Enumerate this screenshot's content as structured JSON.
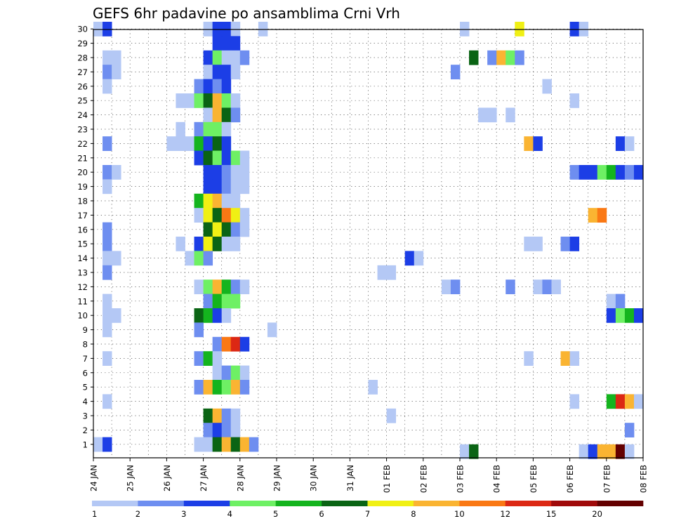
{
  "chart_data": {
    "type": "heatmap",
    "title": "GEFS 6hr padavine po ansamblima Crni Vrh",
    "xlabel": "",
    "ylabel": "",
    "x_tick_labels": [
      "24 JAN",
      "25 JAN",
      "26 JAN",
      "27 JAN",
      "28 JAN",
      "29 JAN",
      "30 JAN",
      "31 JAN",
      "01 FEB",
      "02 FEB",
      "03 FEB",
      "04 FEB",
      "05 FEB",
      "06 FEB",
      "07 FEB",
      "08 FEB"
    ],
    "y_tick_labels": [
      "1",
      "2",
      "3",
      "4",
      "5",
      "6",
      "7",
      "8",
      "9",
      "10",
      "11",
      "12",
      "13",
      "14",
      "15",
      "16",
      "17",
      "18",
      "19",
      "20",
      "21",
      "22",
      "23",
      "24",
      "25",
      "26",
      "27",
      "28",
      "29",
      "30"
    ],
    "time_step": "6hr",
    "time_steps_total": 60,
    "grid": "dotted",
    "colorbar": {
      "labels": [
        "1",
        "2",
        "3",
        "4",
        "5",
        "6",
        "7",
        "8",
        "10",
        "12",
        "15",
        "20"
      ],
      "colors": [
        "#b4c8f5",
        "#6e8ef0",
        "#1c3ee6",
        "#6ef064",
        "#14b41e",
        "#0a6414",
        "#f0f014",
        "#fab432",
        "#fa7814",
        "#dc2814",
        "#a00a0a",
        "#640000"
      ]
    },
    "cells_note": "each entry: [member (y), time step index from 24 JAN 00 (x, 6-hour steps), precipitation class index into colorbar.colors]",
    "cells": [
      [
        30,
        0,
        0
      ],
      [
        30,
        1,
        2
      ],
      [
        30,
        12,
        0
      ],
      [
        30,
        13,
        2
      ],
      [
        30,
        14,
        2
      ],
      [
        30,
        15,
        0
      ],
      [
        30,
        18,
        0
      ],
      [
        30,
        40,
        0
      ],
      [
        30,
        46,
        6
      ],
      [
        30,
        52,
        2
      ],
      [
        30,
        53,
        0
      ],
      [
        29,
        13,
        2
      ],
      [
        29,
        14,
        2
      ],
      [
        29,
        15,
        2
      ],
      [
        28,
        1,
        0
      ],
      [
        28,
        2,
        0
      ],
      [
        28,
        12,
        2
      ],
      [
        28,
        13,
        3
      ],
      [
        28,
        14,
        0
      ],
      [
        28,
        15,
        0
      ],
      [
        28,
        16,
        1
      ],
      [
        28,
        41,
        5
      ],
      [
        28,
        43,
        1
      ],
      [
        28,
        44,
        7
      ],
      [
        28,
        45,
        3
      ],
      [
        28,
        46,
        1
      ],
      [
        27,
        1,
        1
      ],
      [
        27,
        2,
        0
      ],
      [
        27,
        12,
        0
      ],
      [
        27,
        13,
        2
      ],
      [
        27,
        14,
        2
      ],
      [
        27,
        15,
        0
      ],
      [
        27,
        39,
        1
      ],
      [
        26,
        1,
        0
      ],
      [
        26,
        11,
        1
      ],
      [
        26,
        12,
        2
      ],
      [
        26,
        13,
        1
      ],
      [
        26,
        14,
        2
      ],
      [
        26,
        49,
        0
      ],
      [
        25,
        9,
        0
      ],
      [
        25,
        10,
        0
      ],
      [
        25,
        11,
        3
      ],
      [
        25,
        12,
        5
      ],
      [
        25,
        13,
        7
      ],
      [
        25,
        14,
        3
      ],
      [
        25,
        15,
        0
      ],
      [
        25,
        52,
        0
      ],
      [
        24,
        12,
        0
      ],
      [
        24,
        13,
        7
      ],
      [
        24,
        14,
        5
      ],
      [
        24,
        15,
        1
      ],
      [
        24,
        42,
        0
      ],
      [
        24,
        43,
        0
      ],
      [
        24,
        45,
        0
      ],
      [
        23,
        9,
        0
      ],
      [
        23,
        11,
        1
      ],
      [
        23,
        12,
        3
      ],
      [
        23,
        13,
        3
      ],
      [
        23,
        14,
        0
      ],
      [
        22,
        1,
        1
      ],
      [
        22,
        8,
        0
      ],
      [
        22,
        9,
        0
      ],
      [
        22,
        10,
        0
      ],
      [
        22,
        11,
        4
      ],
      [
        22,
        12,
        2
      ],
      [
        22,
        13,
        5
      ],
      [
        22,
        14,
        2
      ],
      [
        22,
        47,
        7
      ],
      [
        22,
        48,
        2
      ],
      [
        22,
        57,
        2
      ],
      [
        22,
        58,
        0
      ],
      [
        21,
        11,
        2
      ],
      [
        21,
        12,
        5
      ],
      [
        21,
        13,
        3
      ],
      [
        21,
        14,
        2
      ],
      [
        21,
        15,
        3
      ],
      [
        21,
        16,
        0
      ],
      [
        20,
        1,
        1
      ],
      [
        20,
        2,
        0
      ],
      [
        20,
        12,
        2
      ],
      [
        20,
        13,
        2
      ],
      [
        20,
        14,
        1
      ],
      [
        20,
        15,
        0
      ],
      [
        20,
        16,
        0
      ],
      [
        20,
        52,
        1
      ],
      [
        20,
        53,
        2
      ],
      [
        20,
        54,
        2
      ],
      [
        20,
        55,
        3
      ],
      [
        20,
        56,
        4
      ],
      [
        20,
        57,
        2
      ],
      [
        20,
        58,
        1
      ],
      [
        20,
        59,
        2
      ],
      [
        19,
        1,
        0
      ],
      [
        19,
        12,
        2
      ],
      [
        19,
        13,
        2
      ],
      [
        19,
        14,
        1
      ],
      [
        19,
        15,
        0
      ],
      [
        19,
        16,
        0
      ],
      [
        18,
        11,
        4
      ],
      [
        18,
        12,
        6
      ],
      [
        18,
        13,
        7
      ],
      [
        18,
        14,
        0
      ],
      [
        18,
        15,
        0
      ],
      [
        17,
        11,
        0
      ],
      [
        17,
        12,
        6
      ],
      [
        17,
        13,
        5
      ],
      [
        17,
        14,
        8
      ],
      [
        17,
        15,
        6
      ],
      [
        17,
        16,
        0
      ],
      [
        17,
        54,
        7
      ],
      [
        17,
        55,
        8
      ],
      [
        16,
        1,
        1
      ],
      [
        16,
        12,
        5
      ],
      [
        16,
        13,
        6
      ],
      [
        16,
        14,
        5
      ],
      [
        16,
        15,
        1
      ],
      [
        16,
        16,
        0
      ],
      [
        15,
        1,
        1
      ],
      [
        15,
        9,
        0
      ],
      [
        15,
        11,
        2
      ],
      [
        15,
        12,
        6
      ],
      [
        15,
        13,
        5
      ],
      [
        15,
        14,
        0
      ],
      [
        15,
        15,
        0
      ],
      [
        15,
        47,
        0
      ],
      [
        15,
        48,
        0
      ],
      [
        15,
        51,
        1
      ],
      [
        15,
        52,
        2
      ],
      [
        14,
        1,
        0
      ],
      [
        14,
        2,
        0
      ],
      [
        14,
        10,
        0
      ],
      [
        14,
        11,
        3
      ],
      [
        14,
        12,
        1
      ],
      [
        14,
        34,
        2
      ],
      [
        14,
        35,
        0
      ],
      [
        13,
        1,
        1
      ],
      [
        13,
        31,
        0
      ],
      [
        13,
        32,
        0
      ],
      [
        12,
        11,
        0
      ],
      [
        12,
        12,
        3
      ],
      [
        12,
        13,
        7
      ],
      [
        12,
        14,
        4
      ],
      [
        12,
        15,
        1
      ],
      [
        12,
        16,
        0
      ],
      [
        12,
        38,
        0
      ],
      [
        12,
        39,
        1
      ],
      [
        12,
        45,
        1
      ],
      [
        12,
        48,
        0
      ],
      [
        12,
        49,
        1
      ],
      [
        12,
        50,
        0
      ],
      [
        11,
        1,
        0
      ],
      [
        11,
        12,
        1
      ],
      [
        11,
        13,
        4
      ],
      [
        11,
        14,
        3
      ],
      [
        11,
        15,
        3
      ],
      [
        11,
        56,
        0
      ],
      [
        11,
        57,
        1
      ],
      [
        10,
        1,
        0
      ],
      [
        10,
        2,
        0
      ],
      [
        10,
        11,
        5
      ],
      [
        10,
        12,
        4
      ],
      [
        10,
        13,
        2
      ],
      [
        10,
        14,
        0
      ],
      [
        10,
        56,
        2
      ],
      [
        10,
        57,
        3
      ],
      [
        10,
        58,
        4
      ],
      [
        10,
        59,
        2
      ],
      [
        9,
        1,
        0
      ],
      [
        9,
        11,
        1
      ],
      [
        9,
        19,
        0
      ],
      [
        8,
        13,
        1
      ],
      [
        8,
        14,
        8
      ],
      [
        8,
        15,
        9
      ],
      [
        8,
        16,
        2
      ],
      [
        7,
        1,
        0
      ],
      [
        7,
        11,
        1
      ],
      [
        7,
        12,
        4
      ],
      [
        7,
        13,
        0
      ],
      [
        7,
        47,
        0
      ],
      [
        7,
        51,
        7
      ],
      [
        7,
        52,
        0
      ],
      [
        6,
        13,
        0
      ],
      [
        6,
        14,
        1
      ],
      [
        6,
        15,
        3
      ],
      [
        6,
        16,
        0
      ],
      [
        5,
        11,
        1
      ],
      [
        5,
        12,
        7
      ],
      [
        5,
        13,
        4
      ],
      [
        5,
        14,
        3
      ],
      [
        5,
        15,
        7
      ],
      [
        5,
        16,
        1
      ],
      [
        5,
        30,
        0
      ],
      [
        4,
        1,
        0
      ],
      [
        4,
        52,
        0
      ],
      [
        4,
        56,
        4
      ],
      [
        4,
        57,
        9
      ],
      [
        4,
        58,
        7
      ],
      [
        4,
        59,
        0
      ],
      [
        3,
        12,
        5
      ],
      [
        3,
        13,
        7
      ],
      [
        3,
        14,
        1
      ],
      [
        3,
        15,
        0
      ],
      [
        3,
        32,
        0
      ],
      [
        2,
        12,
        1
      ],
      [
        2,
        13,
        2
      ],
      [
        2,
        14,
        1
      ],
      [
        2,
        15,
        0
      ],
      [
        2,
        58,
        1
      ],
      [
        1,
        0,
        0
      ],
      [
        1,
        1,
        2
      ],
      [
        1,
        11,
        0
      ],
      [
        1,
        12,
        0
      ],
      [
        1,
        13,
        5
      ],
      [
        1,
        14,
        7
      ],
      [
        1,
        15,
        5
      ],
      [
        1,
        16,
        7
      ],
      [
        1,
        17,
        1
      ],
      [
        0.5,
        40,
        0
      ],
      [
        0.5,
        41,
        5
      ],
      [
        0.5,
        53,
        0
      ],
      [
        0.5,
        54,
        2
      ],
      [
        0.5,
        55,
        7
      ],
      [
        0.5,
        56,
        7
      ],
      [
        0.5,
        57,
        11
      ],
      [
        0.5,
        58,
        0
      ]
    ]
  }
}
